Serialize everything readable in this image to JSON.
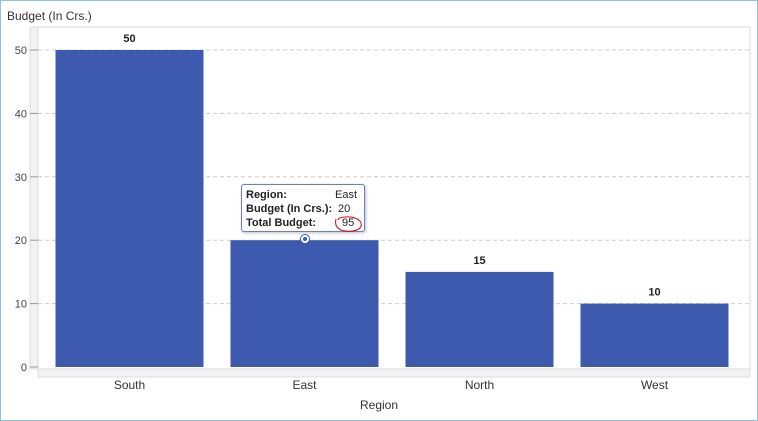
{
  "chart_data": {
    "type": "bar",
    "title": "Budget (In Crs.)",
    "xlabel": "Region",
    "ylabel": "",
    "categories": [
      "South",
      "East",
      "North",
      "West"
    ],
    "values": [
      50,
      20,
      15,
      10
    ],
    "data_labels": [
      "50",
      "",
      "15",
      "10"
    ],
    "ylim": [
      0,
      55
    ],
    "yticks": [
      0,
      10,
      20,
      30,
      40,
      50
    ],
    "grid": true,
    "bar_color": "#3e5aaf",
    "tooltip": {
      "rows": [
        {
          "key": "Region:",
          "value": "East"
        },
        {
          "key": "Budget (In Crs.):",
          "value": "20"
        },
        {
          "key": "Total Budget:",
          "value": "95"
        }
      ],
      "annotation_color": "#d0021b"
    }
  }
}
